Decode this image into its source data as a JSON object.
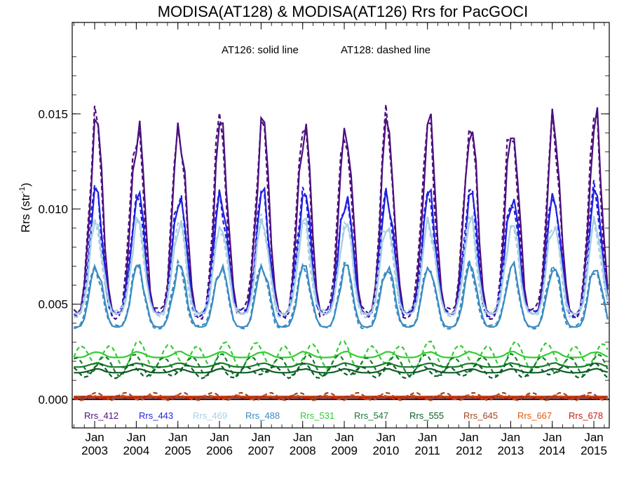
{
  "chart_data": {
    "type": "line",
    "title": "MODISA(AT128) & MODISA(AT126)  Rrs for PacGOCI",
    "ylabel": "Rrs (str",
    "ylabel_sup": "-1",
    "ylabel_close": ")",
    "annotation_solid": "AT126: solid line",
    "annotation_dashed": "AT128: dashed line",
    "ylim": [
      -0.0015,
      0.0198
    ],
    "xlim": [
      2002.46,
      2015.37
    ],
    "y_ticks": [
      "0.000",
      "0.005",
      "0.010",
      "0.015"
    ],
    "y_tick_values": [
      0.0,
      0.005,
      0.01,
      0.015
    ],
    "x_month_label": "Jan",
    "x_ticks": [
      "2003",
      "2004",
      "2005",
      "2006",
      "2007",
      "2008",
      "2009",
      "2010",
      "2011",
      "2012",
      "2013",
      "2014",
      "2015"
    ],
    "x_tick_values": [
      2003,
      2004,
      2005,
      2006,
      2007,
      2008,
      2009,
      2010,
      2011,
      2012,
      2013,
      2014,
      2015
    ],
    "x_start": 2002.5,
    "x_step_years": 0.0833333,
    "series_def": [
      {
        "name": "Rrs_412",
        "color": "#4b0f7d",
        "base": 0.0045,
        "amp": 0.01
      },
      {
        "name": "Rrs_443",
        "color": "#1f1fe0",
        "base": 0.0045,
        "amp": 0.0063
      },
      {
        "name": "Rrs_469",
        "color": "#a6cfe3",
        "base": 0.0045,
        "amp": 0.0048
      },
      {
        "name": "Rrs_488",
        "color": "#3a8bc2",
        "base": 0.0038,
        "amp": 0.0032
      },
      {
        "name": "Rrs_531",
        "color": "#33cc33",
        "base": 0.0022,
        "amp": 0.0003
      },
      {
        "name": "Rrs_547",
        "color": "#1a7a2e",
        "base": 0.0017,
        "amp": 0.0002
      },
      {
        "name": "Rrs_555",
        "color": "#0d5c27",
        "base": 0.0014,
        "amp": 0.0002
      },
      {
        "name": "Rrs_645",
        "color": "#a0461c",
        "base": 0.00015,
        "amp": 0.0
      },
      {
        "name": "Rrs_667",
        "color": "#e05a10",
        "base": 0.00012,
        "amp": 0.0
      },
      {
        "name": "Rrs_678",
        "color": "#c0201a",
        "base": 0.0001,
        "amp": 0.0
      }
    ],
    "series_dashed_offset": [
      0.0003,
      0.0002,
      0.0002,
      0.0001,
      0.0006,
      0.0005,
      0.0003,
      0.0002,
      0.0001,
      5e-05
    ],
    "legend_placement": "bottom-inside",
    "grid": false,
    "colors": {
      "axis": "#000000",
      "zero_line": "#000000"
    }
  }
}
